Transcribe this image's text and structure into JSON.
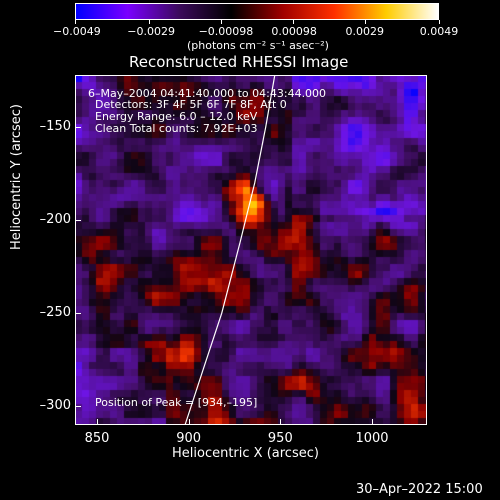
{
  "colorbar": {
    "ticks": [
      "-0.0049",
      "-0.0029",
      "-0.00098",
      "0.00098",
      "0.0029",
      "0.0049"
    ],
    "tick_values": [
      -0.0049,
      -0.0029,
      -0.00098,
      0.00098,
      0.0029,
      0.0049
    ],
    "range": [
      -0.0049,
      0.0049
    ],
    "colors": [
      "#0000ff",
      "#7a00ff",
      "#3b0a5b",
      "#000000",
      "#a00000",
      "#ff3000",
      "#ffcc00",
      "#ffffff"
    ]
  },
  "units_label": "(photons cm⁻² s⁻¹ asec⁻²)",
  "plot_title": "Reconstructed RHESSI Image",
  "info": {
    "line1": "6–May–2004 04:41:40.000 to 04:43:44.000",
    "line2": "Detectors: 3F 4F 5F 6F 7F 8F, Att 0",
    "line3": "Energy Range: 6.0 – 12.0 keV",
    "line4": "Clean     Total counts: 7.92E+03"
  },
  "peak_label": "Position of Peak = [934,–195]",
  "xlabel": "Heliocentric X (arcsec)",
  "ylabel": "Heliocentric Y (arcsec)",
  "timestamp": "30–Apr–2022 15:00",
  "chart_data": {
    "type": "heatmap",
    "title": "Reconstructed RHESSI Image",
    "xlabel": "Heliocentric X (arcsec)",
    "ylabel": "Heliocentric Y (arcsec)",
    "xlim": [
      838,
      1030
    ],
    "ylim": [
      -310,
      -122
    ],
    "x_ticks": [
      850,
      900,
      950,
      1000
    ],
    "x_tick_labels": [
      "850",
      "900",
      "950",
      "1000"
    ],
    "y_ticks": [
      -150,
      -200,
      -250,
      -300
    ],
    "y_tick_labels": [
      "–150",
      "–200",
      "–250",
      "–300"
    ],
    "peak": {
      "x": 934,
      "y": -195
    },
    "limb_curve": [
      [
        898,
        -310
      ],
      [
        908,
        -280
      ],
      [
        918,
        -250
      ],
      [
        928,
        -212
      ],
      [
        936,
        -180
      ],
      [
        942,
        -150
      ],
      [
        947,
        -122
      ]
    ]
  }
}
